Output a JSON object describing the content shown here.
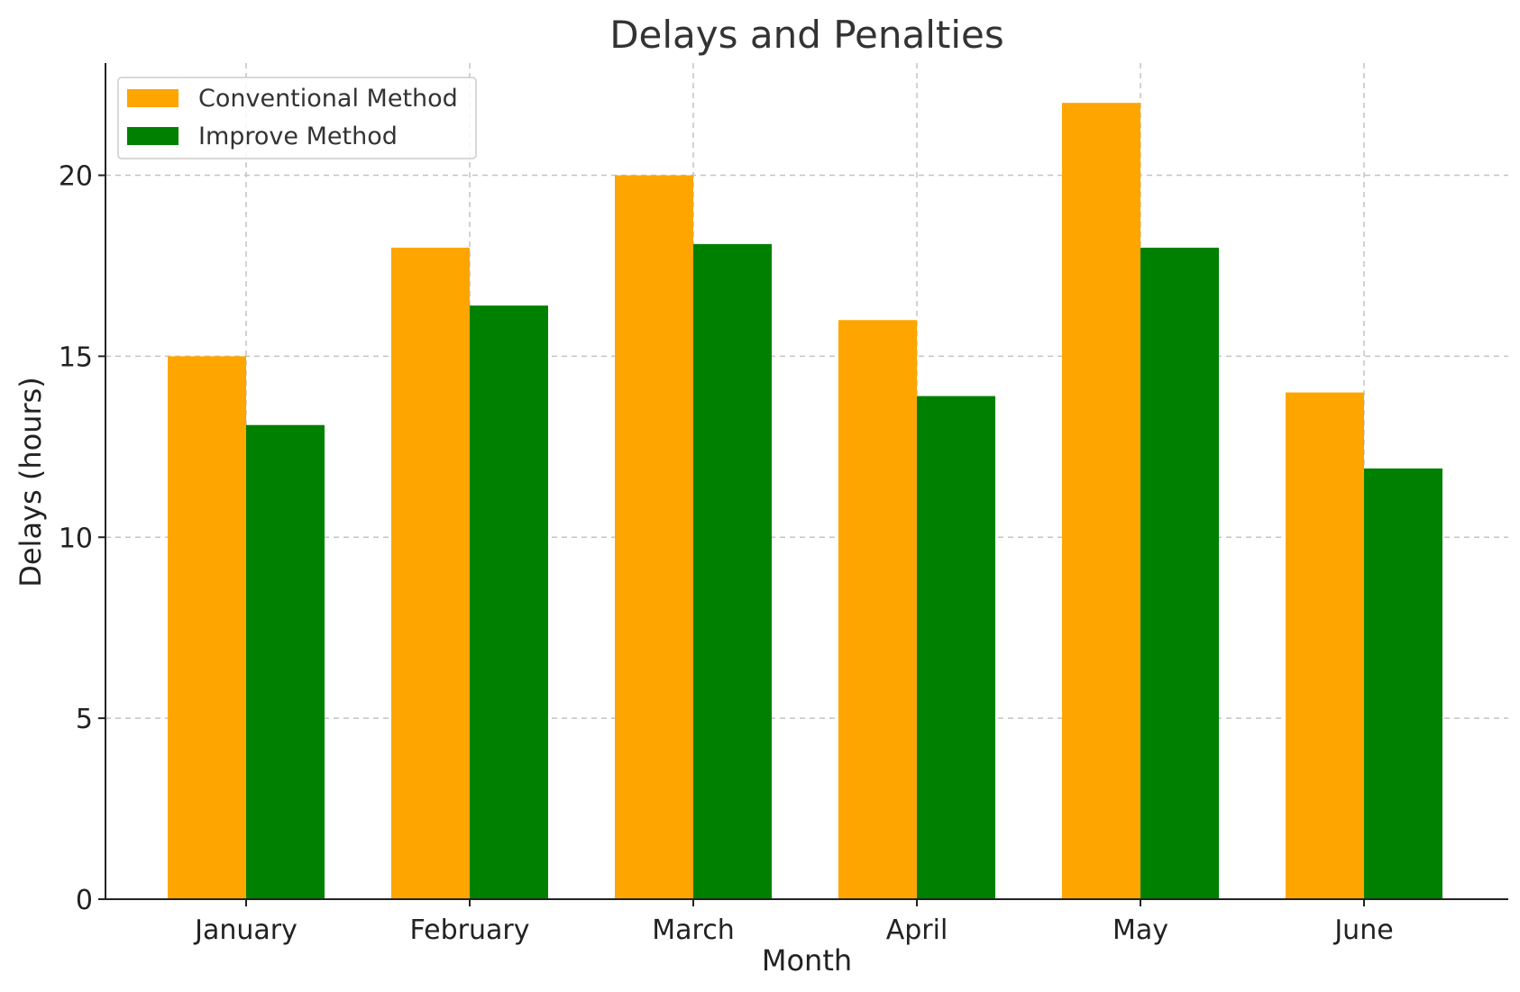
{
  "chart_data": {
    "type": "bar",
    "title": "Delays and Penalties",
    "xlabel": "Month",
    "ylabel": "Delays (hours)",
    "categories": [
      "January",
      "February",
      "March",
      "April",
      "May",
      "June"
    ],
    "series": [
      {
        "name": "Conventional Method",
        "color": "#FFA500",
        "values": [
          15,
          18,
          20,
          16,
          22,
          14
        ]
      },
      {
        "name": "Improve Method",
        "color": "#008000",
        "values": [
          13.1,
          16.4,
          18.1,
          13.9,
          18.0,
          11.9
        ]
      }
    ],
    "ylim": [
      0,
      23.1
    ],
    "yticks": [
      0,
      5,
      10,
      15,
      20
    ],
    "grid": true,
    "legend_position": "top-left"
  }
}
